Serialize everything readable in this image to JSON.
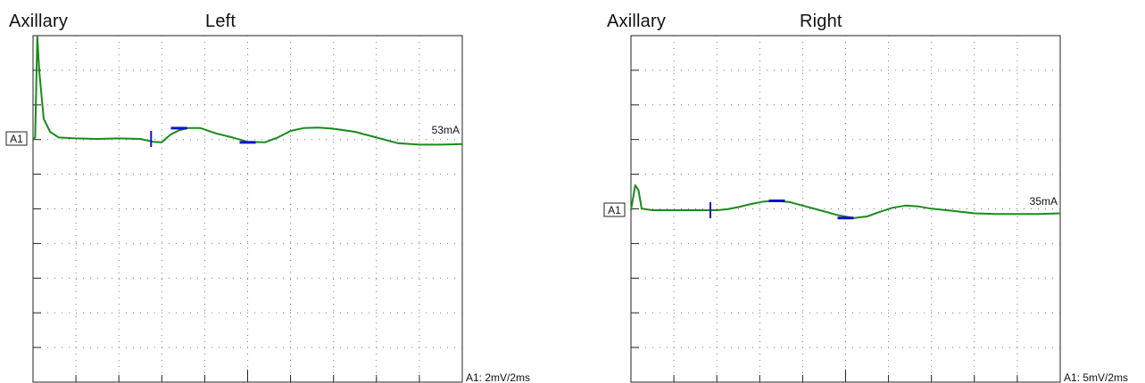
{
  "chart_data": [
    {
      "type": "line",
      "muscle": "Axillary",
      "side": "Left",
      "channel_label": "A1",
      "stim_current": "53mA",
      "scale": "A1: 2mV/2ms",
      "x_range_ms": [
        0,
        20
      ],
      "x_divisions": 10,
      "y_divisions": 10,
      "grid": true,
      "trace_color": "#1a8a1a",
      "marker_color": "#1010d0",
      "x": [
        0,
        0.1,
        0.2,
        0.3,
        0.5,
        0.8,
        1.2,
        2,
        3,
        4,
        5,
        5.6,
        6,
        6.4,
        6.8,
        7.2,
        7.8,
        8.5,
        9.3,
        10,
        10.8,
        11.4,
        12,
        12.6,
        13.3,
        14,
        15,
        16,
        17,
        18,
        19,
        20
      ],
      "y": [
        0,
        0.05,
        3.6,
        2.3,
        0.7,
        0.25,
        0.05,
        0.02,
        0,
        0.02,
        0,
        -0.1,
        -0.12,
        0.15,
        0.3,
        0.38,
        0.38,
        0.2,
        0.05,
        -0.1,
        -0.12,
        0.05,
        0.28,
        0.38,
        0.4,
        0.36,
        0.25,
        0.05,
        -0.15,
        -0.2,
        -0.2,
        -0.18
      ],
      "markers": [
        {
          "label": "onset",
          "x": 5.5,
          "y": 0,
          "style": "tick"
        },
        {
          "label": "negative peak",
          "x": 6.8,
          "y": 0.38,
          "style": "bar"
        },
        {
          "label": "positive peak",
          "x": 10,
          "y": -0.12,
          "style": "bar"
        }
      ]
    },
    {
      "type": "line",
      "muscle": "Axillary",
      "side": "Right",
      "channel_label": "A1",
      "stim_current": "35mA",
      "scale": "A1: 5mV/2ms",
      "x_range_ms": [
        0,
        20
      ],
      "x_divisions": 10,
      "y_divisions": 10,
      "grid": true,
      "trace_color": "#1a8a1a",
      "marker_color": "#1010d0",
      "x": [
        0,
        0.1,
        0.2,
        0.35,
        0.5,
        1,
        2,
        3,
        4,
        4.5,
        5,
        5.6,
        6.2,
        6.8,
        7.4,
        8,
        8.8,
        9.6,
        10.4,
        11,
        11.6,
        12.2,
        12.8,
        13.4,
        14,
        15,
        16,
        17,
        18,
        19,
        20
      ],
      "y": [
        0,
        0.4,
        0.8,
        0.65,
        0.05,
        0,
        0,
        0,
        0,
        0.03,
        0.1,
        0.2,
        0.28,
        0.3,
        0.26,
        0.15,
        0,
        -0.15,
        -0.25,
        -0.2,
        -0.05,
        0.08,
        0.15,
        0.12,
        0.05,
        -0.02,
        -0.1,
        -0.12,
        -0.12,
        -0.12,
        -0.1
      ],
      "markers": [
        {
          "label": "onset",
          "x": 3.7,
          "y": 0,
          "style": "tick"
        },
        {
          "label": "negative peak",
          "x": 6.8,
          "y": 0.3,
          "style": "bar"
        },
        {
          "label": "positive peak",
          "x": 10,
          "y": -0.25,
          "style": "bar"
        }
      ]
    }
  ]
}
